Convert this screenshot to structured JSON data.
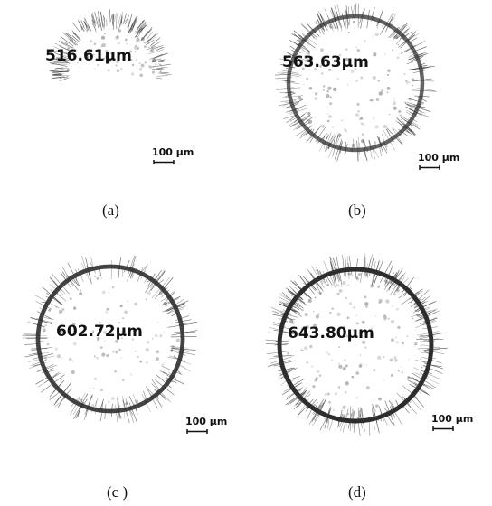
{
  "panels": [
    {
      "measurement": "516.61μm",
      "scale_label": "100 μm",
      "caption": "(a)"
    },
    {
      "measurement": "563.63μm",
      "scale_label": "100 μm",
      "caption": "(b)"
    },
    {
      "measurement": "602.72μm",
      "scale_label": "100 μm",
      "caption": "(c )"
    },
    {
      "measurement": "643.80μm",
      "scale_label": "100 μm",
      "caption": "(d)"
    }
  ]
}
